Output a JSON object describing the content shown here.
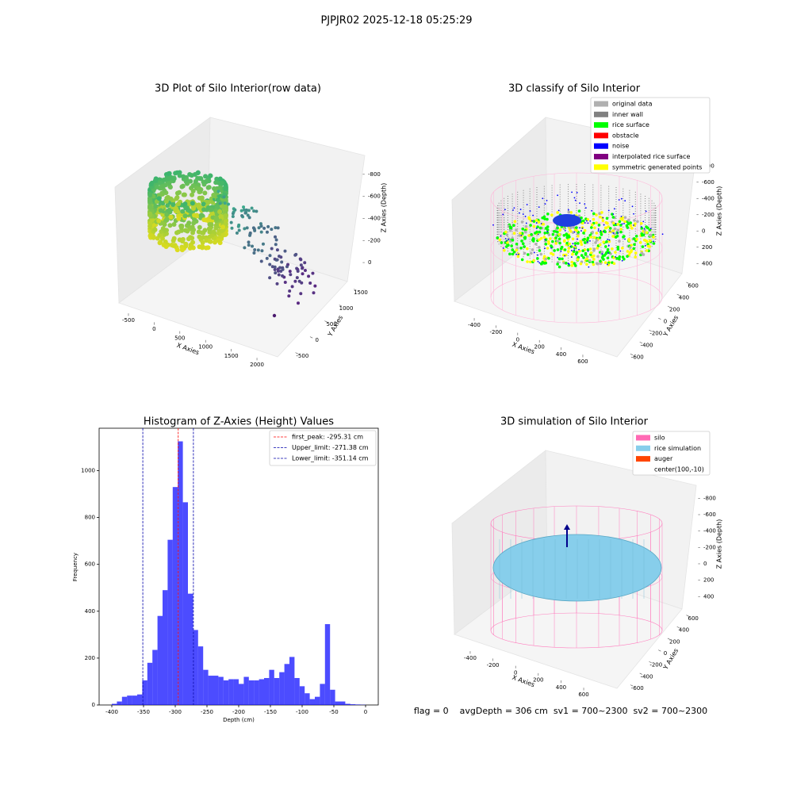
{
  "title": "PJPJR02 2025-12-18 05:25:29",
  "chart_data": [
    {
      "type": "scatter3d",
      "title": "3D Plot of Silo Interior(row data)",
      "xlabel": "X Axies",
      "ylabel": "Y Axies",
      "zlabel": "Z Axies (Depth)",
      "xlim": [
        -700,
        2200
      ],
      "ylim": [
        -700,
        1800
      ],
      "zlim": [
        -1000,
        100
      ],
      "xticks": [
        -500,
        0,
        500,
        1000,
        1500,
        2000
      ],
      "yticks": [
        -500,
        0,
        500,
        1000,
        1500
      ],
      "zticks": [
        0,
        -200,
        -400,
        -600,
        -800
      ]
    },
    {
      "type": "scatter3d",
      "title": "3D classify of Silo Interior",
      "xlabel": "X Axies",
      "ylabel": "Y Axies",
      "zlabel": "Z Axies (Depth)",
      "xlim": [
        -550,
        750
      ],
      "ylim": [
        -750,
        750
      ],
      "zlim": [
        -900,
        500
      ],
      "xticks": [
        -400,
        -200,
        0,
        200,
        400,
        600
      ],
      "yticks": [
        -600,
        -400,
        -200,
        0,
        200,
        400,
        600
      ],
      "zticks": [
        400,
        200,
        0,
        -200,
        -400,
        -600,
        -800
      ],
      "legend": [
        {
          "name": "original data",
          "color": "#b0b0b0"
        },
        {
          "name": "inner wall",
          "color": "#808080"
        },
        {
          "name": "rice surface",
          "color": "#00ff00"
        },
        {
          "name": "obstacle",
          "color": "#ff0000"
        },
        {
          "name": "noise",
          "color": "#0000ff"
        },
        {
          "name": "interpolated rice surface",
          "color": "#800080"
        },
        {
          "name": "symmetric generated points",
          "color": "#ffff00"
        }
      ]
    },
    {
      "type": "histogram",
      "title": "Histogram of Z-Axies (Height) Values",
      "xlabel": "Depth (cm)",
      "ylabel": "Frequency",
      "color": "#0000ff",
      "bins": [
        -400,
        -392,
        -384,
        -376,
        -368,
        -360,
        -352,
        -344,
        -336,
        -328,
        -320,
        -312,
        -304,
        -296,
        -288,
        -280,
        -272,
        -264,
        -256,
        -248,
        -240,
        -232,
        -224,
        -216,
        -208,
        -200,
        -192,
        -184,
        -176,
        -168,
        -160,
        -152,
        -144,
        -136,
        -128,
        -120,
        -112,
        -104,
        -96,
        -88,
        -80,
        -72,
        -64,
        -56,
        -48,
        -40,
        -32,
        -24,
        -16,
        -8,
        0
      ],
      "values": [
        5,
        15,
        35,
        40,
        40,
        45,
        105,
        180,
        235,
        380,
        490,
        705,
        930,
        1125,
        865,
        475,
        320,
        250,
        150,
        125,
        125,
        120,
        105,
        110,
        110,
        90,
        120,
        105,
        105,
        110,
        115,
        150,
        115,
        140,
        175,
        205,
        115,
        80,
        50,
        25,
        35,
        90,
        345,
        65,
        15,
        15,
        5,
        3,
        2,
        1
      ],
      "xlim": [
        -420,
        20
      ],
      "ylim": [
        0,
        1181
      ],
      "xticks": [
        -400,
        -350,
        -300,
        -250,
        -200,
        -150,
        -100,
        -50,
        0
      ],
      "yticks": [
        0,
        200,
        400,
        600,
        800,
        1000
      ],
      "lines": [
        {
          "name": "first_peak: -295.31 cm",
          "value": -295.31,
          "color": "#ff0000"
        },
        {
          "name": "Upper_limit: -271.38 cm",
          "value": -271.38,
          "color": "#0000aa"
        },
        {
          "name": "Lower_limit: -351.14 cm",
          "value": -351.14,
          "color": "#0000aa"
        }
      ]
    },
    {
      "type": "surface3d",
      "title": "3D simulation of Silo Interior",
      "xlabel": "X Axies",
      "ylabel": "Y Axies",
      "zlabel": "Z Axies (Depth)",
      "xlim": [
        -550,
        750
      ],
      "ylim": [
        -750,
        750
      ],
      "zlim": [
        -900,
        500
      ],
      "xticks": [
        -400,
        -200,
        0,
        200,
        400,
        600
      ],
      "yticks": [
        -600,
        -400,
        -200,
        0,
        200,
        400,
        600
      ],
      "zticks": [
        400,
        200,
        0,
        -200,
        -400,
        -600,
        -800
      ],
      "legend": [
        {
          "name": "silo",
          "color": "#ff69b4"
        },
        {
          "name": "rice simulation",
          "color": "#87ceeb"
        },
        {
          "name": "auger",
          "color": "#ff4500"
        },
        {
          "name": "center(100,-10)",
          "color": "#ffffff"
        }
      ],
      "annotation": "flag = 0    avgDepth = 306 cm  sv1 = 700~2300  sv2 = 700~2300"
    }
  ]
}
